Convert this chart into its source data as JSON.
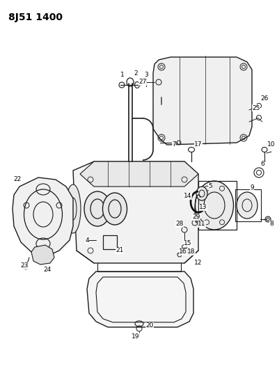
{
  "title": "8J51 1400",
  "bg_color": "#ffffff",
  "line_color": "#1a1a1a",
  "title_fontsize": 10,
  "label_fontsize": 6.5,
  "figsize": [
    3.98,
    5.33
  ],
  "dpi": 100
}
